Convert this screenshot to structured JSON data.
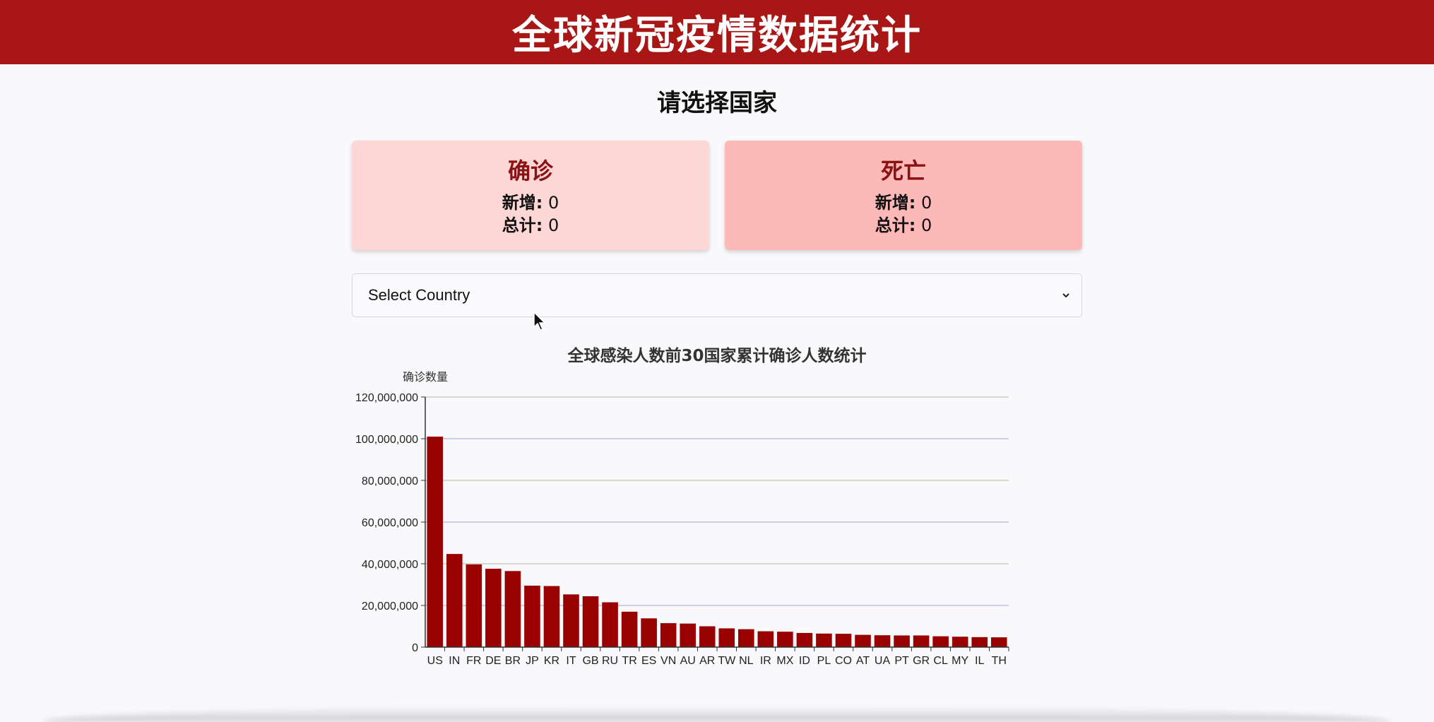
{
  "header": {
    "title": "全球新冠疫情数据统计"
  },
  "page": {
    "subtitle": "请选择国家"
  },
  "cards": {
    "confirmed": {
      "title": "确诊",
      "new_label": "新增:",
      "new_value": "0",
      "total_label": "总计:",
      "total_value": "0"
    },
    "deaths": {
      "title": "死亡",
      "new_label": "新增:",
      "new_value": "0",
      "total_label": "总计:",
      "total_value": "0"
    }
  },
  "country_select": {
    "selected": "Select Country"
  },
  "colors": {
    "header": "#a91616",
    "bar": "#990000",
    "card_confirmed": "#fdd6d6",
    "card_deaths": "#fdb8b8"
  },
  "chart_data": {
    "type": "bar",
    "title": "全球感染人数前30国家累计确诊人数统计",
    "ylabel": "确诊数量",
    "xlabel": "",
    "ylim": [
      0,
      120000000
    ],
    "yticks": [
      "0",
      "20,000,000",
      "40,000,000",
      "60,000,000",
      "80,000,000",
      "100,000,000",
      "120,000,000"
    ],
    "categories": [
      "US",
      "IN",
      "FR",
      "DE",
      "BR",
      "JP",
      "KR",
      "IT",
      "GB",
      "RU",
      "TR",
      "ES",
      "VN",
      "AU",
      "AR",
      "TW",
      "NL",
      "IR",
      "MX",
      "ID",
      "PL",
      "CO",
      "AT",
      "UA",
      "PT",
      "GR",
      "CL",
      "MY",
      "IL",
      "TH"
    ],
    "values": [
      101000000,
      44700000,
      39700000,
      37600000,
      36500000,
      29500000,
      29300000,
      25300000,
      24400000,
      21500000,
      17000000,
      13800000,
      11500000,
      11300000,
      10000000,
      9000000,
      8600000,
      7600000,
      7400000,
      6800000,
      6500000,
      6400000,
      5900000,
      5700000,
      5600000,
      5600000,
      5200000,
      5000000,
      4800000,
      4700000
    ],
    "grid": true,
    "legend": "none"
  }
}
